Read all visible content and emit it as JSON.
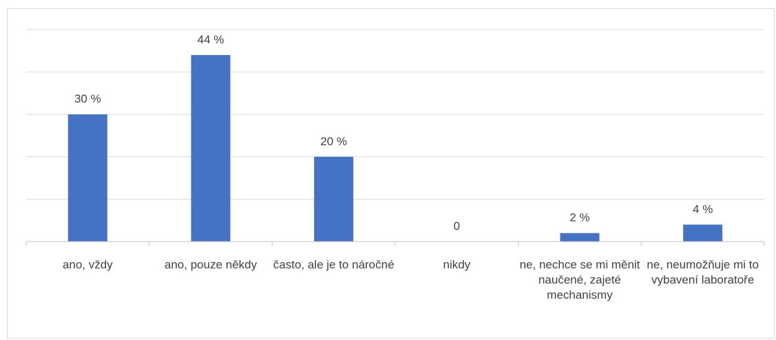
{
  "chart_data": {
    "type": "bar",
    "title": "",
    "xlabel": "",
    "ylabel": "",
    "ylim": [
      0,
      50
    ],
    "grid": true,
    "legend": "none",
    "bar_color": "#4472c4",
    "categories": [
      "ano, vždy",
      "ano, pouze někdy",
      "často, ale je to náročné",
      "nikdy",
      "ne, nechce se mi měnit naučené, zajeté mechanismy",
      "ne, neumožňuje mi to vybavení laboratoře"
    ],
    "values": [
      30,
      44,
      20,
      0,
      2,
      4
    ],
    "data_labels": [
      "30 %",
      "44 %",
      "20 %",
      "0",
      "2 %",
      "4 %"
    ]
  }
}
